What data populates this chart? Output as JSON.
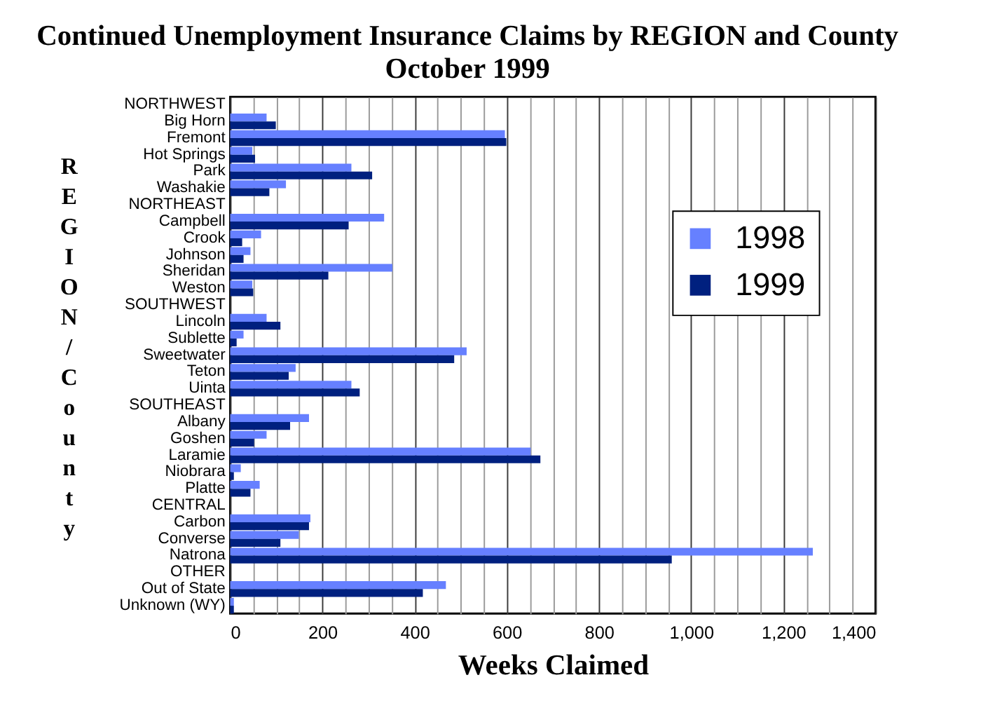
{
  "chart_data": {
    "type": "bar",
    "orientation": "horizontal",
    "title": "Continued Unemployment Insurance Claims by REGION and County",
    "subtitle": "October 1999",
    "xlabel": "Weeks Claimed",
    "ylabel": "REGION/County",
    "categories": [
      "NORTHWEST",
      "Big Horn",
      "Fremont",
      "Hot Springs",
      "Park",
      "Washakie",
      "NORTHEAST",
      "Campbell",
      "Crook",
      "Johnson",
      "Sheridan",
      "Weston",
      "SOUTHWEST",
      "Lincoln",
      "Sublette",
      "Sweetwater",
      "Teton",
      "Uinta",
      "SOUTHEAST",
      "Albany",
      "Goshen",
      "Laramie",
      "Niobrara",
      "Platte",
      "CENTRAL",
      "Carbon",
      "Converse",
      "Natrona",
      "OTHER",
      "Out of State",
      "Unknown (WY)"
    ],
    "series": [
      {
        "name": "1998",
        "color": "#6680ff",
        "values": [
          null,
          79,
          596,
          48,
          263,
          121,
          null,
          334,
          67,
          44,
          352,
          48,
          null,
          79,
          29,
          513,
          142,
          263,
          null,
          171,
          79,
          652,
          23,
          64,
          null,
          174,
          149,
          1264,
          null,
          468,
          8
        ]
      },
      {
        "name": "1999",
        "color": "#00207f",
        "values": [
          null,
          99,
          599,
          54,
          308,
          85,
          null,
          257,
          26,
          29,
          213,
          50,
          null,
          109,
          14,
          486,
          127,
          281,
          null,
          130,
          52,
          673,
          8,
          44,
          null,
          171,
          109,
          958,
          null,
          418,
          8
        ]
      }
    ],
    "xlim": [
      0,
      1400
    ],
    "xticks": [
      0,
      {
        "value": 50,
        "label": null
      },
      {
        "value": 100,
        "label": null
      },
      {
        "value": 150,
        "label": null
      },
      200,
      {
        "value": 250,
        "label": null
      },
      {
        "value": 300,
        "label": null
      },
      {
        "value": 350,
        "label": null
      },
      400,
      {
        "value": 450,
        "label": null
      },
      {
        "value": 500,
        "label": null
      },
      {
        "value": 550,
        "label": null
      },
      600,
      {
        "value": 650,
        "label": null
      },
      {
        "value": 700,
        "label": null
      },
      {
        "value": 750,
        "label": null
      },
      800,
      {
        "value": 850,
        "label": null
      },
      {
        "value": 900,
        "label": null
      },
      {
        "value": 950,
        "label": null
      },
      {
        "value": 1000,
        "label": "1,000"
      },
      {
        "value": 1050,
        "label": null
      },
      {
        "value": 1100,
        "label": null
      },
      {
        "value": 1150,
        "label": null
      },
      {
        "value": 1200,
        "label": "1,200"
      },
      {
        "value": 1250,
        "label": null
      },
      {
        "value": 1300,
        "label": null
      },
      {
        "value": 1350,
        "label": null
      },
      {
        "value": 1400,
        "label": "1,400"
      }
    ],
    "grid": "x",
    "legend": "top right"
  }
}
